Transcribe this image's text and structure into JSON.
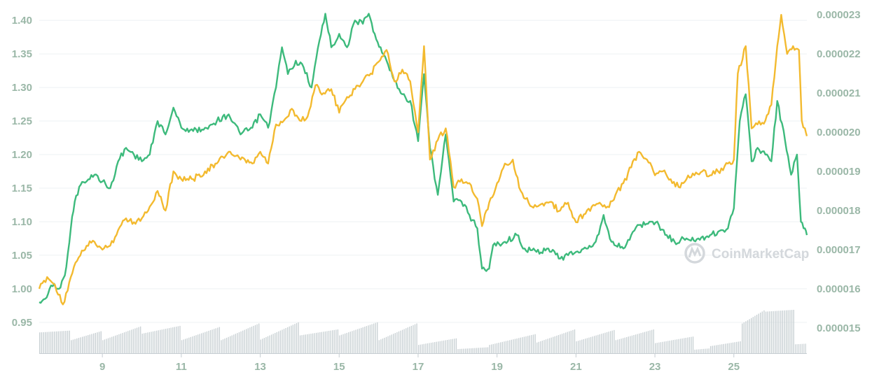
{
  "chart_data": {
    "type": "line",
    "title": "",
    "xlabel": "",
    "ylabel": "",
    "x_ticks": [
      "9",
      "11",
      "13",
      "15",
      "17",
      "19",
      "21",
      "23",
      "25"
    ],
    "x_range": [
      7.4,
      26.85
    ],
    "y_left_ticks": [
      "0.95",
      "1.00",
      "1.05",
      "1.10",
      "1.15",
      "1.20",
      "1.25",
      "1.30",
      "1.35",
      "1.40"
    ],
    "y_left_range": [
      0.93,
      1.42
    ],
    "y_right_ticks": [
      "0.000015",
      "0.000016",
      "0.000017",
      "0.000018",
      "0.000019",
      "0.000020",
      "0.000021",
      "0.000022",
      "0.000023"
    ],
    "y_right_range": [
      1.48e-05,
      2.32e-05
    ],
    "grid": true,
    "watermark": "CoinMarketCap",
    "series": [
      {
        "axis": "left",
        "color": "#3dba7c",
        "points": [
          [
            7.4,
            0.98
          ],
          [
            7.55,
            0.985
          ],
          [
            7.7,
            1.005
          ],
          [
            7.9,
            1.0
          ],
          [
            8.05,
            1.02
          ],
          [
            8.2,
            1.09
          ],
          [
            8.3,
            1.13
          ],
          [
            8.45,
            1.155
          ],
          [
            8.6,
            1.16
          ],
          [
            8.8,
            1.17
          ],
          [
            9.0,
            1.16
          ],
          [
            9.2,
            1.15
          ],
          [
            9.4,
            1.19
          ],
          [
            9.6,
            1.21
          ],
          [
            9.8,
            1.2
          ],
          [
            10.0,
            1.19
          ],
          [
            10.2,
            1.2
          ],
          [
            10.4,
            1.25
          ],
          [
            10.6,
            1.23
          ],
          [
            10.8,
            1.27
          ],
          [
            11.0,
            1.24
          ],
          [
            11.3,
            1.235
          ],
          [
            11.6,
            1.24
          ],
          [
            11.9,
            1.25
          ],
          [
            12.2,
            1.26
          ],
          [
            12.5,
            1.23
          ],
          [
            12.8,
            1.24
          ],
          [
            13.0,
            1.26
          ],
          [
            13.2,
            1.24
          ],
          [
            13.4,
            1.3
          ],
          [
            13.55,
            1.36
          ],
          [
            13.7,
            1.32
          ],
          [
            13.9,
            1.34
          ],
          [
            14.1,
            1.33
          ],
          [
            14.3,
            1.3
          ],
          [
            14.5,
            1.37
          ],
          [
            14.65,
            1.41
          ],
          [
            14.8,
            1.36
          ],
          [
            15.0,
            1.38
          ],
          [
            15.2,
            1.36
          ],
          [
            15.4,
            1.4
          ],
          [
            15.6,
            1.395
          ],
          [
            15.75,
            1.41
          ],
          [
            15.9,
            1.38
          ],
          [
            16.05,
            1.36
          ],
          [
            16.2,
            1.34
          ],
          [
            16.4,
            1.31
          ],
          [
            16.6,
            1.29
          ],
          [
            16.8,
            1.28
          ],
          [
            17.0,
            1.22
          ],
          [
            17.15,
            1.32
          ],
          [
            17.3,
            1.21
          ],
          [
            17.5,
            1.14
          ],
          [
            17.7,
            1.23
          ],
          [
            17.9,
            1.13
          ],
          [
            18.1,
            1.13
          ],
          [
            18.3,
            1.11
          ],
          [
            18.5,
            1.09
          ],
          [
            18.62,
            1.03
          ],
          [
            18.8,
            1.03
          ],
          [
            18.9,
            1.065
          ],
          [
            19.2,
            1.07
          ],
          [
            19.5,
            1.08
          ],
          [
            19.7,
            1.06
          ],
          [
            20.0,
            1.055
          ],
          [
            20.3,
            1.06
          ],
          [
            20.6,
            1.045
          ],
          [
            20.8,
            1.05
          ],
          [
            21.0,
            1.055
          ],
          [
            21.3,
            1.06
          ],
          [
            21.5,
            1.07
          ],
          [
            21.7,
            1.11
          ],
          [
            21.9,
            1.07
          ],
          [
            22.2,
            1.06
          ],
          [
            22.4,
            1.08
          ],
          [
            22.6,
            1.095
          ],
          [
            22.9,
            1.1
          ],
          [
            23.1,
            1.095
          ],
          [
            23.3,
            1.08
          ],
          [
            23.5,
            1.07
          ],
          [
            23.8,
            1.075
          ],
          [
            24.1,
            1.075
          ],
          [
            24.4,
            1.08
          ],
          [
            24.6,
            1.085
          ],
          [
            24.85,
            1.09
          ],
          [
            25.0,
            1.12
          ],
          [
            25.15,
            1.25
          ],
          [
            25.3,
            1.29
          ],
          [
            25.45,
            1.19
          ],
          [
            25.6,
            1.21
          ],
          [
            25.8,
            1.2
          ],
          [
            25.95,
            1.19
          ],
          [
            26.1,
            1.28
          ],
          [
            26.3,
            1.22
          ],
          [
            26.45,
            1.17
          ],
          [
            26.6,
            1.2
          ],
          [
            26.7,
            1.1
          ],
          [
            26.8,
            1.09
          ],
          [
            26.85,
            1.08
          ]
        ]
      },
      {
        "axis": "right",
        "color": "#f3ba2f",
        "points": [
          [
            7.4,
            1.6e-05
          ],
          [
            7.6,
            1.63e-05
          ],
          [
            7.8,
            1.61e-05
          ],
          [
            8.0,
            1.56e-05
          ],
          [
            8.2,
            1.63e-05
          ],
          [
            8.4,
            1.68e-05
          ],
          [
            8.6,
            1.71e-05
          ],
          [
            8.8,
            1.72e-05
          ],
          [
            9.0,
            1.7e-05
          ],
          [
            9.2,
            1.71e-05
          ],
          [
            9.4,
            1.75e-05
          ],
          [
            9.6,
            1.78e-05
          ],
          [
            9.8,
            1.77e-05
          ],
          [
            10.0,
            1.78e-05
          ],
          [
            10.2,
            1.81e-05
          ],
          [
            10.4,
            1.85e-05
          ],
          [
            10.6,
            1.8e-05
          ],
          [
            10.8,
            1.9e-05
          ],
          [
            11.0,
            1.88e-05
          ],
          [
            11.3,
            1.88e-05
          ],
          [
            11.6,
            1.9e-05
          ],
          [
            11.9,
            1.92e-05
          ],
          [
            12.2,
            1.95e-05
          ],
          [
            12.5,
            1.93e-05
          ],
          [
            12.8,
            1.92e-05
          ],
          [
            13.0,
            1.95e-05
          ],
          [
            13.2,
            1.92e-05
          ],
          [
            13.4,
            2.02e-05
          ],
          [
            13.6,
            2.03e-05
          ],
          [
            13.8,
            2.06e-05
          ],
          [
            14.0,
            2.03e-05
          ],
          [
            14.2,
            2.04e-05
          ],
          [
            14.4,
            2.12e-05
          ],
          [
            14.6,
            2.1e-05
          ],
          [
            14.8,
            2.11e-05
          ],
          [
            15.0,
            2.05e-05
          ],
          [
            15.2,
            2.09e-05
          ],
          [
            15.4,
            2.11e-05
          ],
          [
            15.6,
            2.13e-05
          ],
          [
            15.8,
            2.15e-05
          ],
          [
            16.0,
            2.18e-05
          ],
          [
            16.2,
            2.21e-05
          ],
          [
            16.4,
            2.13e-05
          ],
          [
            16.6,
            2.16e-05
          ],
          [
            16.8,
            2.13e-05
          ],
          [
            17.0,
            2e-05
          ],
          [
            17.15,
            2.22e-05
          ],
          [
            17.3,
            1.93e-05
          ],
          [
            17.5,
            1.98e-05
          ],
          [
            17.7,
            2.01e-05
          ],
          [
            17.9,
            1.86e-05
          ],
          [
            18.1,
            1.88e-05
          ],
          [
            18.3,
            1.87e-05
          ],
          [
            18.5,
            1.83e-05
          ],
          [
            18.62,
            1.76e-05
          ],
          [
            18.8,
            1.82e-05
          ],
          [
            19.0,
            1.87e-05
          ],
          [
            19.2,
            1.92e-05
          ],
          [
            19.4,
            1.93e-05
          ],
          [
            19.6,
            1.85e-05
          ],
          [
            19.8,
            1.82e-05
          ],
          [
            20.0,
            1.81e-05
          ],
          [
            20.3,
            1.82e-05
          ],
          [
            20.6,
            1.8e-05
          ],
          [
            20.8,
            1.82e-05
          ],
          [
            21.0,
            1.77e-05
          ],
          [
            21.2,
            1.79e-05
          ],
          [
            21.4,
            1.81e-05
          ],
          [
            21.6,
            1.82e-05
          ],
          [
            21.8,
            1.81e-05
          ],
          [
            22.0,
            1.84e-05
          ],
          [
            22.2,
            1.87e-05
          ],
          [
            22.4,
            1.91e-05
          ],
          [
            22.6,
            1.95e-05
          ],
          [
            22.8,
            1.93e-05
          ],
          [
            23.0,
            1.89e-05
          ],
          [
            23.2,
            1.9e-05
          ],
          [
            23.4,
            1.88e-05
          ],
          [
            23.6,
            1.86e-05
          ],
          [
            23.8,
            1.88e-05
          ],
          [
            24.0,
            1.89e-05
          ],
          [
            24.2,
            1.9e-05
          ],
          [
            24.4,
            1.89e-05
          ],
          [
            24.6,
            1.9e-05
          ],
          [
            24.85,
            1.92e-05
          ],
          [
            25.0,
            1.93e-05
          ],
          [
            25.1,
            2.15e-05
          ],
          [
            25.3,
            2.22e-05
          ],
          [
            25.45,
            2.01e-05
          ],
          [
            25.6,
            2.02e-05
          ],
          [
            25.8,
            2.03e-05
          ],
          [
            25.95,
            2.07e-05
          ],
          [
            26.1,
            2.22e-05
          ],
          [
            26.2,
            2.3e-05
          ],
          [
            26.35,
            2.2e-05
          ],
          [
            26.5,
            2.22e-05
          ],
          [
            26.65,
            2.21e-05
          ],
          [
            26.72,
            2.03e-05
          ],
          [
            26.8,
            2.01e-05
          ],
          [
            26.85,
            1.99e-05
          ]
        ]
      }
    ],
    "volume": {
      "color": "#c9d1d4",
      "segments": [
        {
          "start": 7.4,
          "end": 8.2,
          "low": 0.35,
          "high": 0.38
        },
        {
          "start": 8.2,
          "end": 9.0,
          "low": 0.22,
          "high": 0.37
        },
        {
          "start": 9.0,
          "end": 10.0,
          "low": 0.22,
          "high": 0.45
        },
        {
          "start": 10.0,
          "end": 11.0,
          "low": 0.33,
          "high": 0.46
        },
        {
          "start": 11.0,
          "end": 12.0,
          "low": 0.22,
          "high": 0.44
        },
        {
          "start": 12.0,
          "end": 13.0,
          "low": 0.22,
          "high": 0.5
        },
        {
          "start": 13.0,
          "end": 14.0,
          "low": 0.23,
          "high": 0.52
        },
        {
          "start": 14.0,
          "end": 15.0,
          "low": 0.3,
          "high": 0.4
        },
        {
          "start": 15.0,
          "end": 16.0,
          "low": 0.3,
          "high": 0.52
        },
        {
          "start": 16.0,
          "end": 17.0,
          "low": 0.22,
          "high": 0.5
        },
        {
          "start": 17.0,
          "end": 18.0,
          "low": 0.14,
          "high": 0.25
        },
        {
          "start": 18.0,
          "end": 18.8,
          "low": 0.07,
          "high": 0.1
        },
        {
          "start": 18.8,
          "end": 20.0,
          "low": 0.14,
          "high": 0.32
        },
        {
          "start": 20.0,
          "end": 21.0,
          "low": 0.18,
          "high": 0.4
        },
        {
          "start": 21.0,
          "end": 22.0,
          "low": 0.2,
          "high": 0.39
        },
        {
          "start": 22.0,
          "end": 23.0,
          "low": 0.22,
          "high": 0.4
        },
        {
          "start": 23.0,
          "end": 24.0,
          "low": 0.17,
          "high": 0.28
        },
        {
          "start": 24.0,
          "end": 24.4,
          "low": 0.06,
          "high": 0.08
        },
        {
          "start": 24.4,
          "end": 25.2,
          "low": 0.12,
          "high": 0.2
        },
        {
          "start": 25.2,
          "end": 25.8,
          "low": 0.5,
          "high": 0.72
        },
        {
          "start": 25.8,
          "end": 26.55,
          "low": 0.7,
          "high": 0.73
        },
        {
          "start": 26.55,
          "end": 26.85,
          "low": 0.15,
          "high": 0.16
        }
      ]
    }
  }
}
